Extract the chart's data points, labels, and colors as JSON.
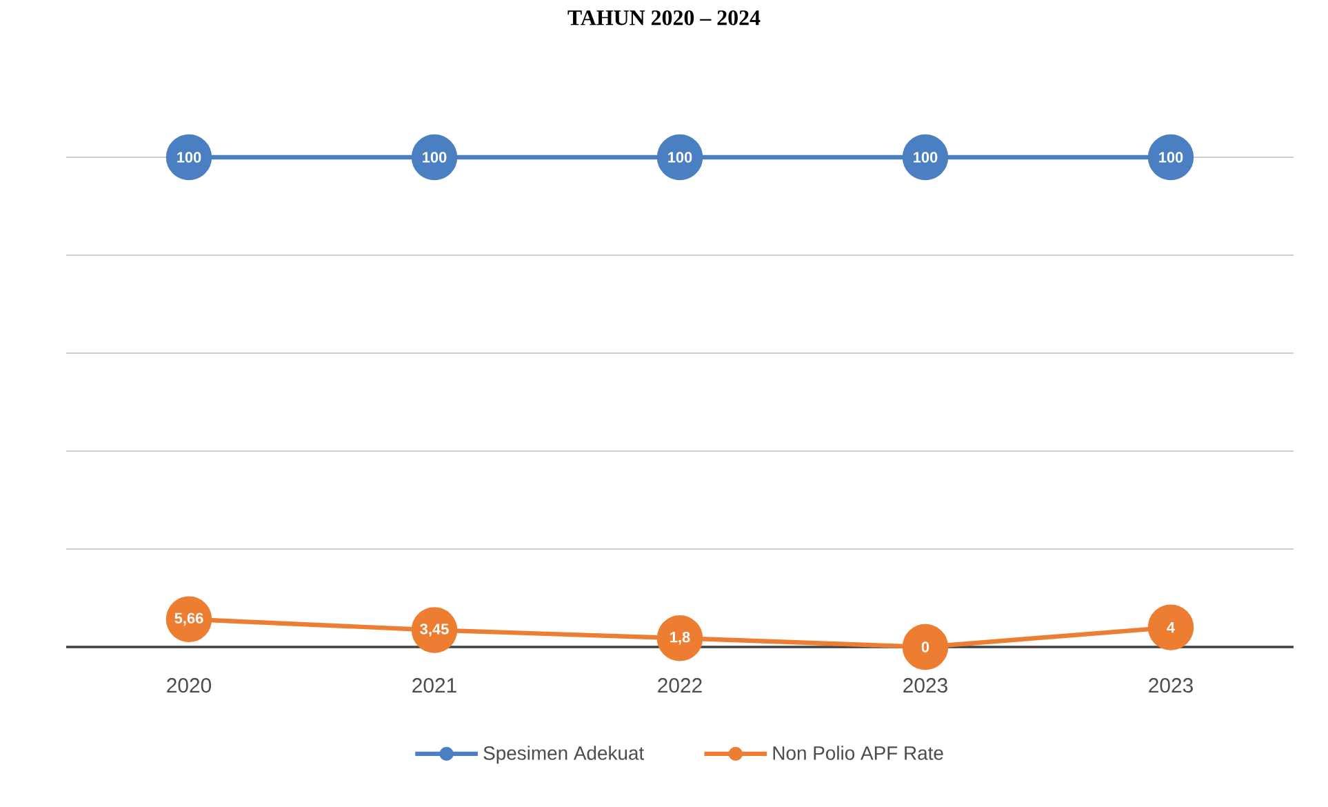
{
  "chart_data": {
    "type": "line",
    "title": "TAHUN 2020 – 2024",
    "categories": [
      "2020",
      "2021",
      "2022",
      "2023",
      "2023"
    ],
    "series": [
      {
        "name": "Spesimen Adekuat",
        "color": "#4a7fc1",
        "values": [
          100,
          100,
          100,
          100,
          100
        ],
        "value_labels": [
          "100",
          "100",
          "100",
          "100",
          "100"
        ]
      },
      {
        "name": "Non Polio APF Rate",
        "color": "#ed7d31",
        "values": [
          5.66,
          3.45,
          1.8,
          0,
          4
        ],
        "value_labels": [
          "5,66",
          "3,45",
          "1,8",
          "0",
          "4"
        ]
      }
    ],
    "grid": "y",
    "legend": "bottom",
    "marker": "circle",
    "tick_labels": "x"
  }
}
